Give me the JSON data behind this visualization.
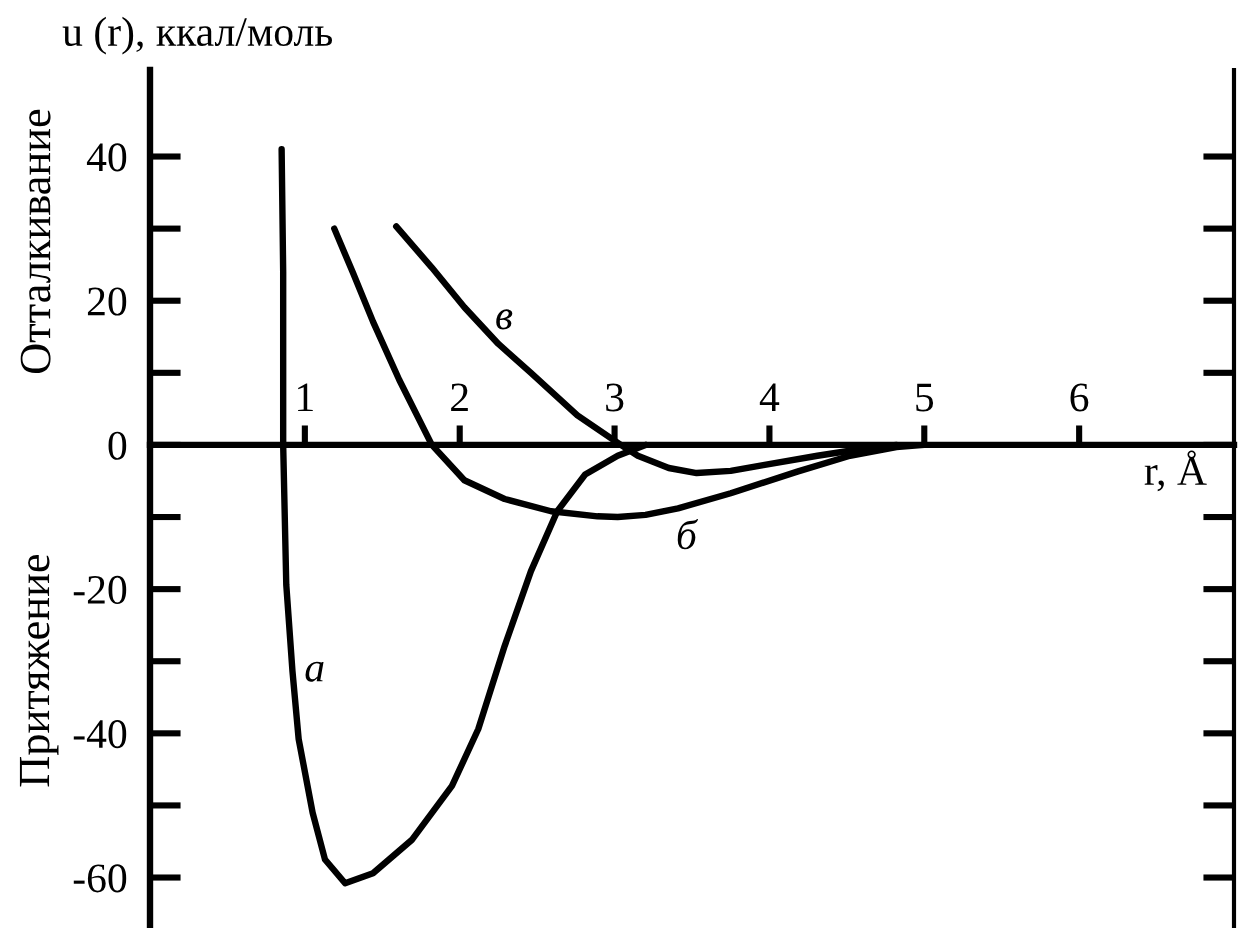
{
  "chart_data": {
    "type": "line",
    "ylabel": "u (r), ккал/моль",
    "xlabel": "r, Å",
    "annotations": [
      "Отталкивание",
      "Притяжение"
    ],
    "xlim": [
      0,
      7
    ],
    "xticks": [
      1,
      2,
      3,
      4,
      5,
      6
    ],
    "ylim": [
      -67,
      52
    ],
    "yticks": [
      -60,
      {
        "value": -50,
        "label": null
      },
      -40,
      {
        "value": -30,
        "label": null
      },
      -20,
      {
        "value": -10,
        "label": null
      },
      0,
      {
        "value": 10,
        "label": null
      },
      20,
      {
        "value": 30,
        "label": null
      },
      40
    ],
    "line_style": "solid",
    "series": [
      {
        "name": "а",
        "color": "#000000",
        "x": [
          0.85,
          0.86,
          0.86,
          0.88,
          0.92,
          0.96,
          1.05,
          1.13,
          1.26,
          1.44,
          1.69,
          1.95,
          2.12,
          2.29,
          2.46,
          2.63,
          2.81,
          3.02,
          3.2
        ],
        "values": [
          41,
          24,
          0,
          -19.4,
          -31.4,
          -40.8,
          -51,
          -57.5,
          -60.8,
          -59.4,
          -54.8,
          -47.3,
          -39.4,
          -27.9,
          -17.5,
          -9.2,
          -4.1,
          -1.5,
          0
        ]
      },
      {
        "name": "б",
        "color": "#000000",
        "x": [
          1.19,
          1.31,
          1.44,
          1.61,
          1.82,
          2.03,
          2.29,
          2.59,
          2.89,
          3.02,
          3.2,
          3.41,
          3.75,
          4.18,
          4.52,
          4.82,
          5.0
        ],
        "values": [
          30,
          23.9,
          17.1,
          9,
          0,
          -4.9,
          -7.5,
          -9.2,
          -9.9,
          -10,
          -9.7,
          -8.8,
          -6.7,
          -3.7,
          -1.5,
          -0.3,
          0
        ]
      },
      {
        "name": "в",
        "color": "#000000",
        "x": [
          1.59,
          1.82,
          2.03,
          2.25,
          2.46,
          2.76,
          3.04,
          3.15,
          3.35,
          3.53,
          3.75,
          3.96,
          4.31,
          4.55,
          4.82
        ],
        "values": [
          30.3,
          24.6,
          19.1,
          14,
          10,
          4.1,
          0,
          -1.5,
          -3.2,
          -3.9,
          -3.6,
          -2.8,
          -1.5,
          -0.7,
          0
        ]
      }
    ]
  }
}
